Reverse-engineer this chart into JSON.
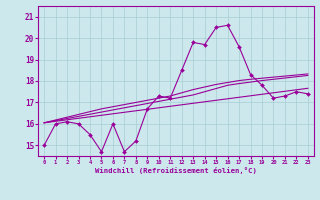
{
  "xlabel": "Windchill (Refroidissement éolien,°C)",
  "bg_color": "#cce8ec",
  "line_color": "#990099",
  "grid_color": "#a8cdd4",
  "x_values": [
    0,
    1,
    2,
    3,
    4,
    5,
    6,
    7,
    8,
    9,
    10,
    11,
    12,
    13,
    14,
    15,
    16,
    17,
    18,
    19,
    20,
    21,
    22,
    23
  ],
  "y_main": [
    15.0,
    16.0,
    16.1,
    16.0,
    15.5,
    14.7,
    16.0,
    14.7,
    15.2,
    16.7,
    17.3,
    17.2,
    18.5,
    19.8,
    19.7,
    20.5,
    20.6,
    19.6,
    18.3,
    17.8,
    17.2,
    17.3,
    17.5,
    17.4
  ],
  "y_line1": [
    16.05,
    16.12,
    16.19,
    16.26,
    16.33,
    16.4,
    16.47,
    16.54,
    16.61,
    16.68,
    16.75,
    16.82,
    16.89,
    16.96,
    17.03,
    17.1,
    17.17,
    17.24,
    17.31,
    17.38,
    17.45,
    17.52,
    17.59,
    17.66
  ],
  "y_line2": [
    16.05,
    16.15,
    16.25,
    16.35,
    16.45,
    16.55,
    16.65,
    16.75,
    16.85,
    16.95,
    17.05,
    17.15,
    17.25,
    17.35,
    17.5,
    17.65,
    17.8,
    17.88,
    17.95,
    18.02,
    18.08,
    18.14,
    18.2,
    18.26
  ],
  "y_line3": [
    16.05,
    16.18,
    16.31,
    16.44,
    16.57,
    16.7,
    16.8,
    16.9,
    17.0,
    17.1,
    17.2,
    17.3,
    17.45,
    17.6,
    17.72,
    17.84,
    17.93,
    18.02,
    18.08,
    18.13,
    18.18,
    18.23,
    18.28,
    18.33
  ],
  "ylim": [
    14.5,
    21.5
  ],
  "xlim": [
    -0.5,
    23.5
  ],
  "yticks": [
    15,
    16,
    17,
    18,
    19,
    20,
    21
  ],
  "xticks": [
    0,
    1,
    2,
    3,
    4,
    5,
    6,
    7,
    8,
    9,
    10,
    11,
    12,
    13,
    14,
    15,
    16,
    17,
    18,
    19,
    20,
    21,
    22,
    23
  ],
  "xtick_labels": [
    "0",
    "1",
    "2",
    "3",
    "4",
    "5",
    "6",
    "7",
    "8",
    "9",
    "10",
    "11",
    "12",
    "13",
    "14",
    "15",
    "16",
    "17",
    "18",
    "19",
    "20",
    "21",
    "22",
    "23"
  ]
}
